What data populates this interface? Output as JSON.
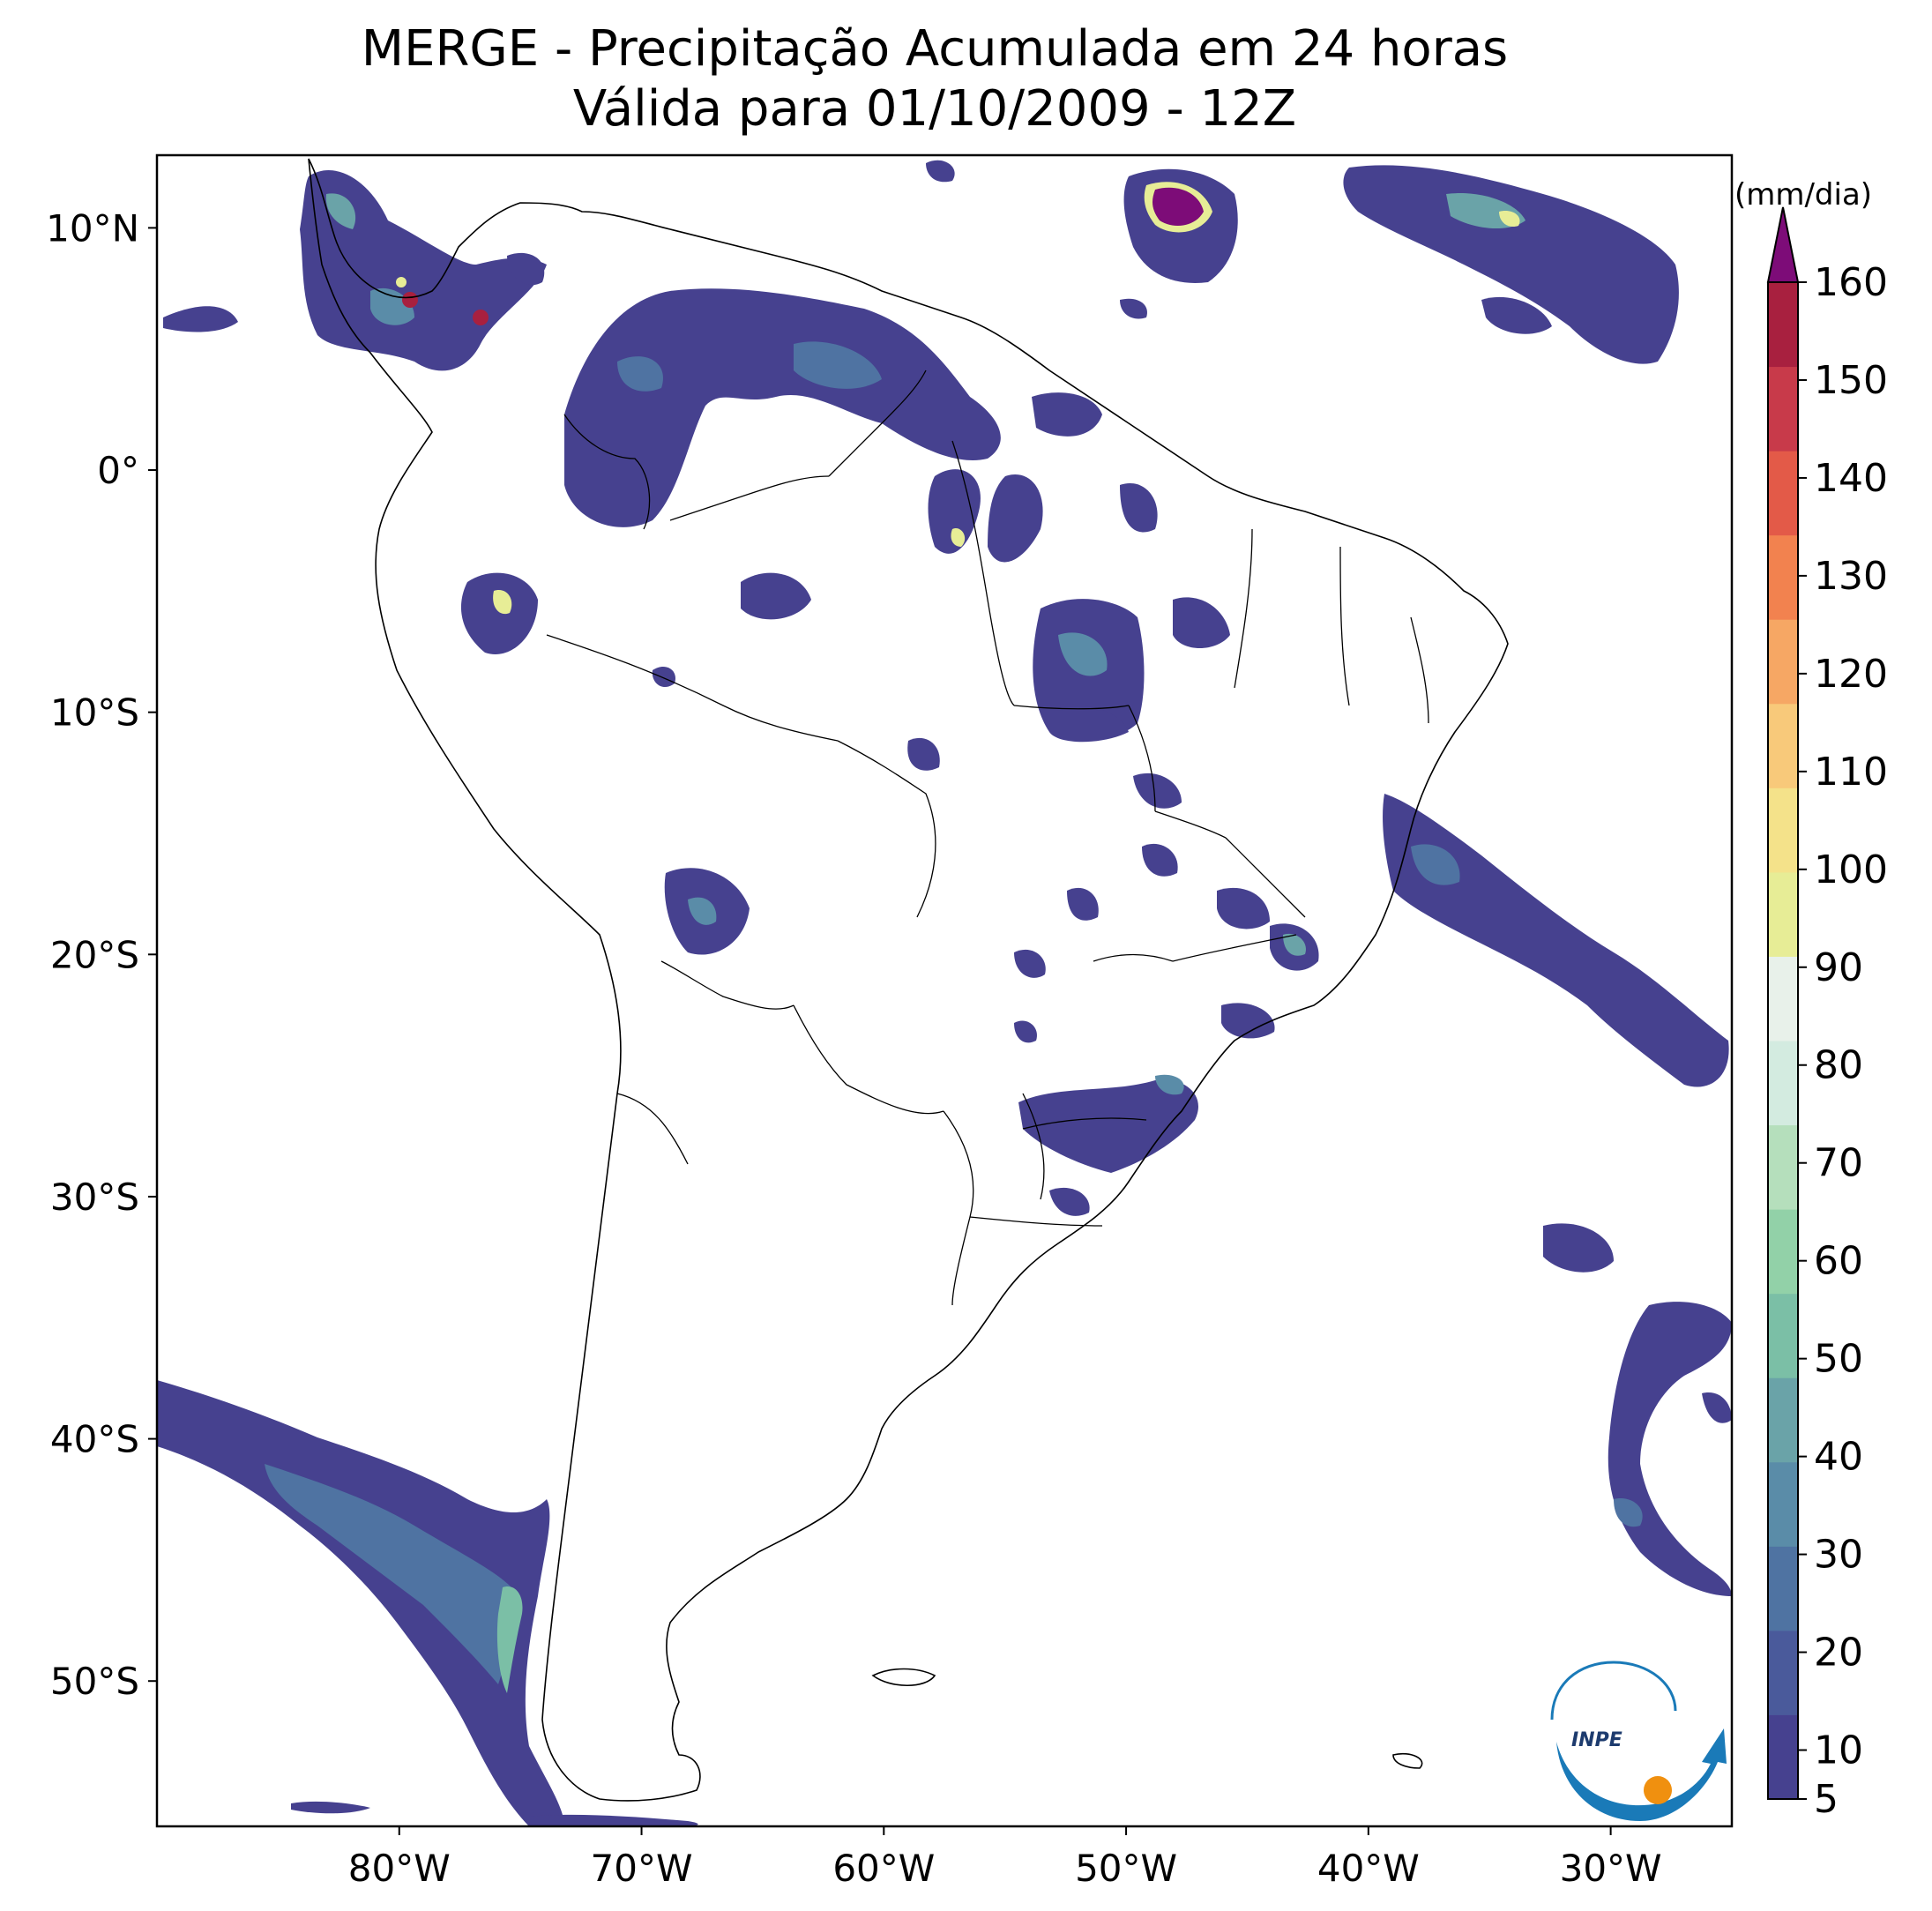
{
  "title": {
    "line1": "MERGE - Precipitação Acumulada em 24 horas",
    "line2": "Válida para 01/10/2009 - 12Z"
  },
  "map": {
    "lon_range": [
      -90,
      -25
    ],
    "lat_range": [
      -56,
      13
    ],
    "lon_ticks": [
      {
        "value": -80,
        "label": "80°W"
      },
      {
        "value": -70,
        "label": "70°W"
      },
      {
        "value": -60,
        "label": "60°W"
      },
      {
        "value": -50,
        "label": "50°W"
      },
      {
        "value": -40,
        "label": "40°W"
      },
      {
        "value": -30,
        "label": "30°W"
      }
    ],
    "lat_ticks": [
      {
        "value": 10,
        "label": "10°N"
      },
      {
        "value": 0,
        "label": "0°"
      },
      {
        "value": -10,
        "label": "10°S"
      },
      {
        "value": -20,
        "label": "20°S"
      },
      {
        "value": -30,
        "label": "30°S"
      },
      {
        "value": -40,
        "label": "40°S"
      },
      {
        "value": -50,
        "label": "50°S"
      }
    ]
  },
  "colorbar": {
    "unit": "(mm/dia)",
    "min": 5,
    "max": 160,
    "extend": "max",
    "tick_labels": [
      "5",
      "10",
      "20",
      "30",
      "40",
      "50",
      "60",
      "70",
      "80",
      "90",
      "100",
      "110",
      "120",
      "130",
      "140",
      "150",
      "160"
    ],
    "colors": [
      "#46418f",
      "#4a5a9b",
      "#4f73a2",
      "#5a8ca8",
      "#6aa3a8",
      "#7bbfa6",
      "#92d1a8",
      "#b5dfbc",
      "#d3ebe0",
      "#e8f1ea",
      "#e7ed96",
      "#f4e28a",
      "#f8c97a",
      "#f6a764",
      "#f2824f",
      "#e35a48",
      "#c83a4a",
      "#a8203f"
    ],
    "extend_color": "#7d0c78"
  },
  "precip_colors": {
    "light": "#46418f",
    "moderate": "#5a8ca8",
    "heavy": "#e7ed96",
    "extreme": "#a8203f"
  },
  "logo": {
    "text": "INPE",
    "ring_color": "#1a7ab8",
    "dot_color": "#f0900f"
  }
}
